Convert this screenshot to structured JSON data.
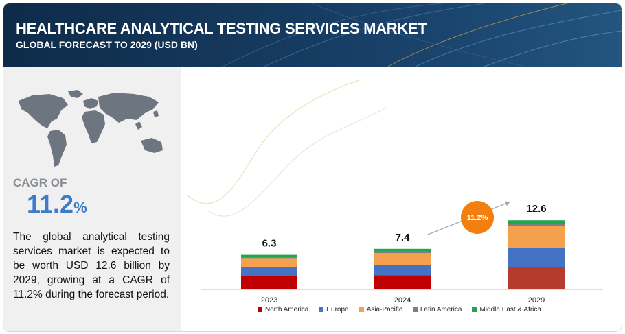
{
  "header": {
    "title": "HEALTHCARE ANALYTICAL TESTING SERVICES MARKET",
    "subtitle": "GLOBAL FORECAST TO 2029 (USD BN)"
  },
  "left_panel": {
    "map_icon": "world-map-icon",
    "cagr_label": "CAGR OF",
    "cagr_number": "11.2",
    "cagr_unit": "%",
    "description": "The global analytical testing services market is expected to be worth USD 12.6 billion by 2029, growing at a CAGR of 11.2% during the forecast period."
  },
  "colors": {
    "north_america": "#c00000",
    "europe": "#4472c4",
    "asia_pacific": "#f4a04d",
    "latin_america": "#7f7f7f",
    "middle_east_africa": "#21a650",
    "north_america_2029": "#b63b2f",
    "cagr_bubble": "#f37f0e",
    "accent_blue": "#3d7cc9"
  },
  "chart_data": {
    "type": "bar",
    "stacked": true,
    "categories": [
      "2023",
      "2024",
      "2029"
    ],
    "totals": [
      6.3,
      7.4,
      12.6
    ],
    "total_labels": [
      "6.3",
      "7.4",
      "12.6"
    ],
    "series": [
      {
        "name": "North America",
        "values": [
          2.4,
          2.6,
          4.0
        ]
      },
      {
        "name": "Europe",
        "values": [
          1.6,
          1.9,
          3.6
        ]
      },
      {
        "name": "Asia-Pacific",
        "values": [
          1.7,
          2.1,
          3.9
        ]
      },
      {
        "name": "Latin America",
        "values": [
          0.3,
          0.4,
          0.5
        ]
      },
      {
        "name": "Middle East & Africa",
        "values": [
          0.3,
          0.4,
          0.6
        ]
      }
    ],
    "annotation": "11.2%",
    "ylim": [
      0,
      16
    ],
    "grid": false,
    "legend_position": "bottom"
  }
}
